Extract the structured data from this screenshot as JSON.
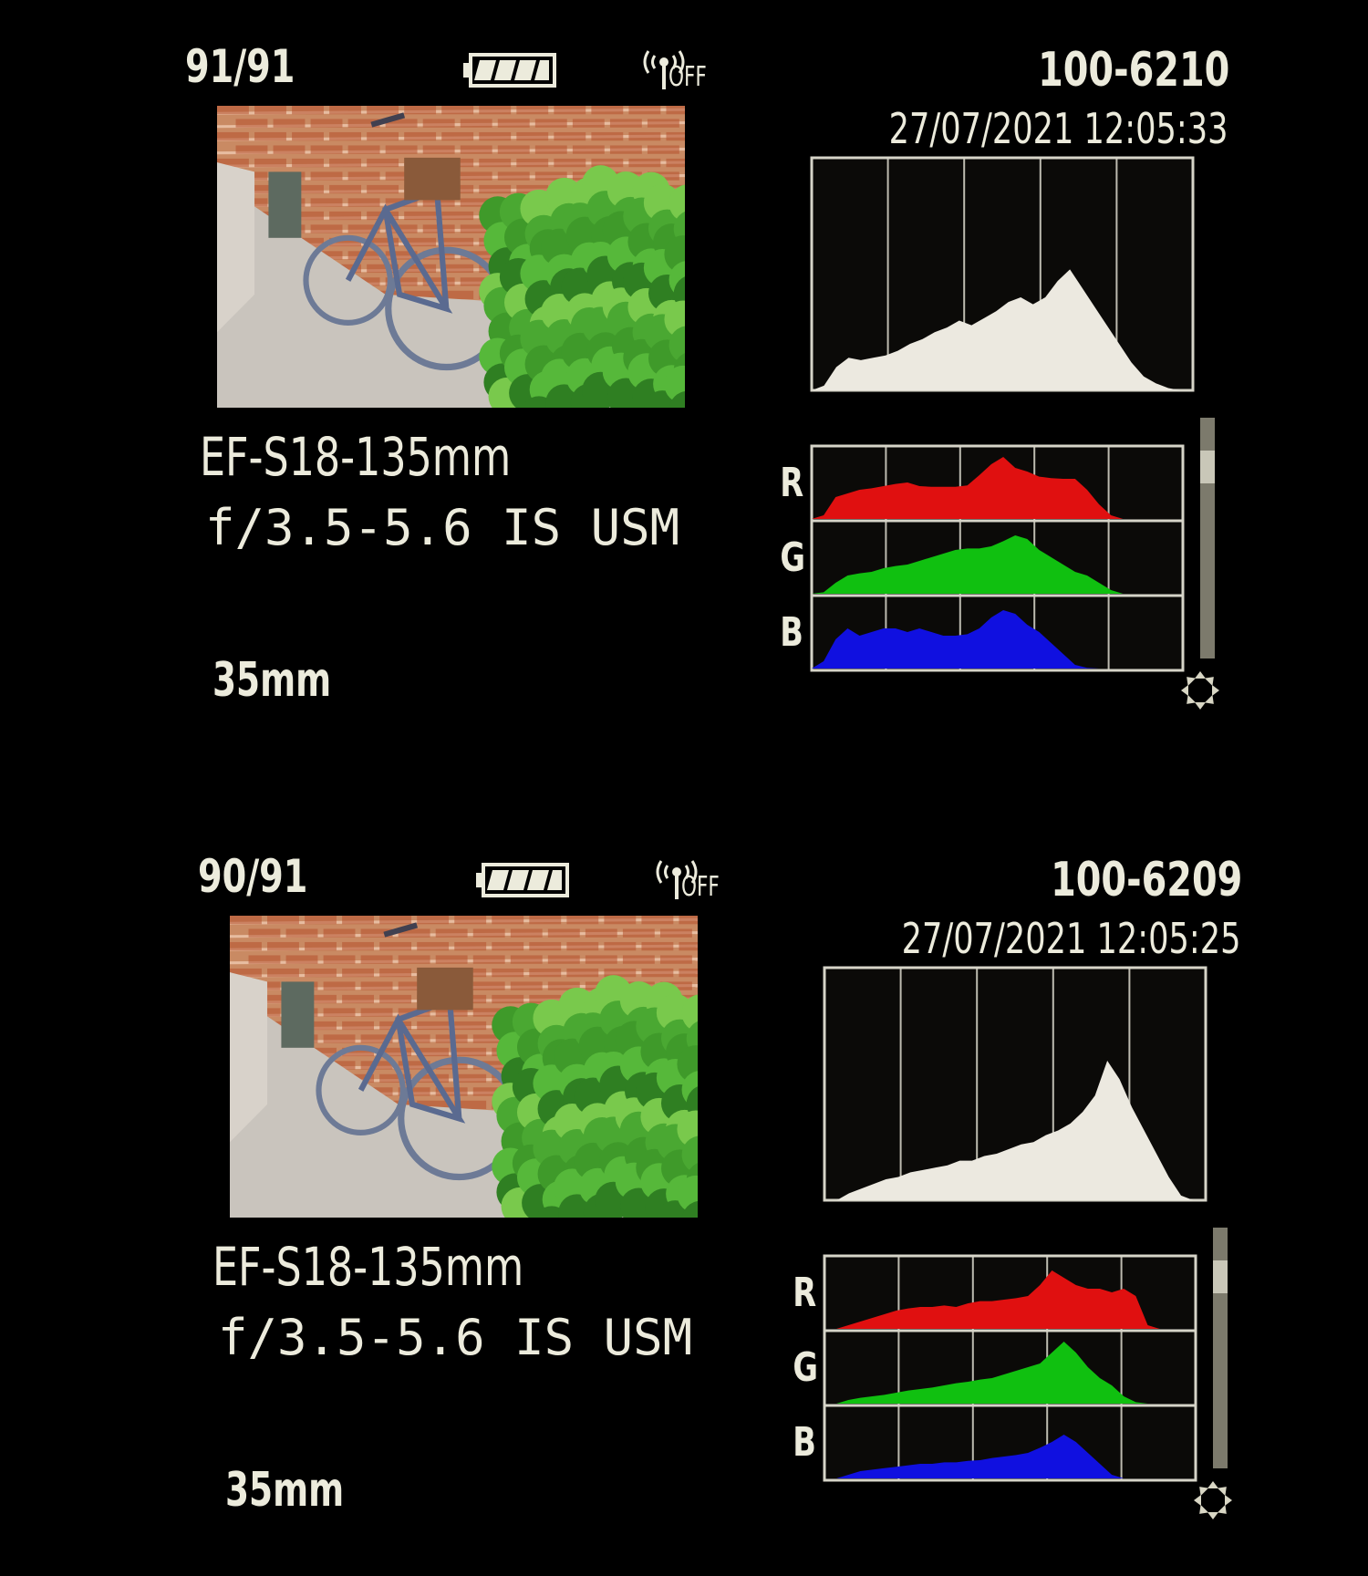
{
  "panels": [
    {
      "image_counter": "91/91",
      "battery_icon": "battery-full-icon",
      "wifi_status": "OFF",
      "file_number": "100-6210",
      "datetime": "27/07/2021 12:05:33",
      "lens_line1": "EF-S18-135mm",
      "lens_line2": "f/3.5-5.6 IS USM",
      "focal_length": "35mm",
      "rgb_labels": [
        "R",
        "G",
        "B"
      ],
      "histogram": {
        "brightness": [
          0,
          0.02,
          0.1,
          0.14,
          0.13,
          0.14,
          0.15,
          0.17,
          0.2,
          0.22,
          0.25,
          0.27,
          0.3,
          0.28,
          0.31,
          0.34,
          0.38,
          0.4,
          0.37,
          0.4,
          0.47,
          0.52,
          0.44,
          0.36,
          0.28,
          0.2,
          0.12,
          0.06,
          0.03,
          0.01,
          0,
          0
        ],
        "red": [
          0,
          0.05,
          0.3,
          0.35,
          0.4,
          0.42,
          0.45,
          0.48,
          0.5,
          0.45,
          0.44,
          0.44,
          0.44,
          0.46,
          0.6,
          0.75,
          0.85,
          0.7,
          0.65,
          0.58,
          0.56,
          0.55,
          0.55,
          0.4,
          0.2,
          0.05,
          0,
          0,
          0,
          0,
          0,
          0
        ],
        "green": [
          0,
          0.02,
          0.15,
          0.25,
          0.28,
          0.3,
          0.35,
          0.38,
          0.4,
          0.45,
          0.5,
          0.55,
          0.6,
          0.62,
          0.62,
          0.65,
          0.72,
          0.8,
          0.75,
          0.6,
          0.5,
          0.4,
          0.3,
          0.25,
          0.15,
          0.05,
          0,
          0,
          0,
          0,
          0,
          0
        ],
        "blue": [
          0,
          0.1,
          0.4,
          0.55,
          0.45,
          0.5,
          0.55,
          0.55,
          0.5,
          0.55,
          0.5,
          0.45,
          0.45,
          0.47,
          0.55,
          0.7,
          0.8,
          0.75,
          0.6,
          0.5,
          0.35,
          0.2,
          0.05,
          0.01,
          0,
          0,
          0,
          0,
          0,
          0,
          0,
          0
        ]
      }
    },
    {
      "image_counter": "90/91",
      "battery_icon": "battery-full-icon",
      "wifi_status": "OFF",
      "file_number": "100-6209",
      "datetime": "27/07/2021 12:05:25",
      "lens_line1": "EF-S18-135mm",
      "lens_line2": "f/3.5-5.6 IS USM",
      "focal_length": "35mm",
      "rgb_labels": [
        "R",
        "G",
        "B"
      ],
      "histogram": {
        "brightness": [
          0,
          0,
          0.03,
          0.05,
          0.07,
          0.09,
          0.1,
          0.12,
          0.13,
          0.14,
          0.15,
          0.17,
          0.17,
          0.19,
          0.2,
          0.22,
          0.24,
          0.25,
          0.28,
          0.3,
          0.33,
          0.38,
          0.45,
          0.6,
          0.52,
          0.4,
          0.3,
          0.2,
          0.1,
          0.02,
          0,
          0
        ],
        "red": [
          0,
          0,
          0.05,
          0.1,
          0.15,
          0.2,
          0.25,
          0.28,
          0.3,
          0.3,
          0.32,
          0.3,
          0.35,
          0.38,
          0.38,
          0.4,
          0.42,
          0.45,
          0.6,
          0.8,
          0.7,
          0.6,
          0.55,
          0.55,
          0.5,
          0.55,
          0.45,
          0.05,
          0,
          0,
          0,
          0
        ],
        "green": [
          0,
          0,
          0.05,
          0.08,
          0.1,
          0.12,
          0.15,
          0.18,
          0.2,
          0.22,
          0.25,
          0.28,
          0.3,
          0.33,
          0.35,
          0.4,
          0.45,
          0.5,
          0.55,
          0.7,
          0.85,
          0.7,
          0.5,
          0.35,
          0.25,
          0.1,
          0.02,
          0,
          0,
          0,
          0,
          0
        ],
        "blue": [
          0,
          0,
          0.05,
          0.1,
          0.12,
          0.14,
          0.16,
          0.18,
          0.2,
          0.2,
          0.22,
          0.22,
          0.24,
          0.25,
          0.28,
          0.3,
          0.32,
          0.35,
          0.42,
          0.5,
          0.6,
          0.5,
          0.35,
          0.2,
          0.05,
          0,
          0,
          0,
          0,
          0,
          0,
          0
        ]
      }
    }
  ],
  "colors": {
    "red": "#e01010",
    "green": "#10c010",
    "blue": "#1010e0",
    "brightness": "#ece9e0",
    "text": "#ecebdc"
  }
}
